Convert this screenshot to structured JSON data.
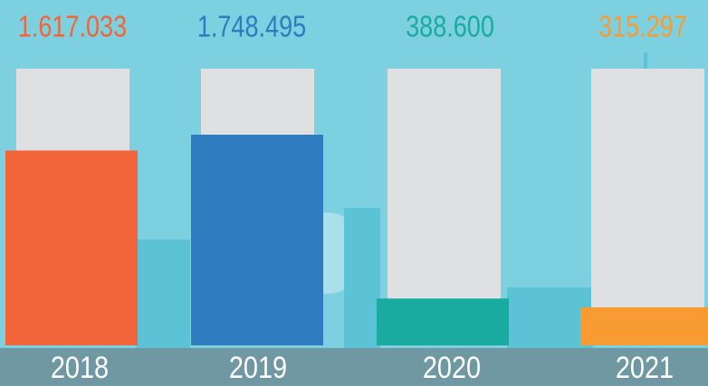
{
  "chart_data": {
    "type": "bar",
    "categories": [
      "2018",
      "2019",
      "2020",
      "2021"
    ],
    "values": [
      1617033,
      1748495,
      388600,
      315297
    ],
    "value_labels": [
      "1.617.033",
      "1.748.495",
      "388.600",
      "315.297"
    ],
    "colors": [
      "#f2643a",
      "#2f7bbf",
      "#19ab9f",
      "#f99b33"
    ]
  }
}
